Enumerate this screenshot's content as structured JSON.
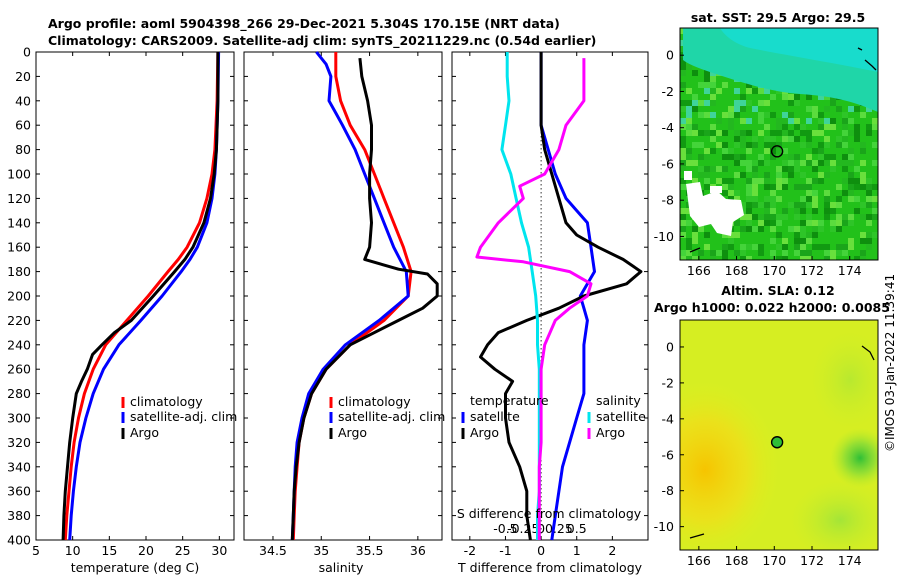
{
  "header": {
    "line1": "Argo profile: aoml 5904398_266 29-Dec-2021 5.304S 170.15E (NRT data)",
    "line2": "Climatology: CARS2009. Satellite-adj clim: synTS_20211229.nc (0.54d earlier)"
  },
  "colors": {
    "climatology": "#ff0000",
    "satellite": "#0000ff",
    "argo": "#000000",
    "t_diff": "#00e5ee",
    "s_diff": "#ff00ff"
  },
  "copyright": "©IMOS 03-Jan-2022 11:39:41",
  "chart_data": [
    {
      "type": "line",
      "id": "temperature",
      "xlabel": "temperature (deg C)",
      "ylabel": "",
      "xlim": [
        5,
        32
      ],
      "ylim": [
        400,
        0
      ],
      "xticks": [
        5,
        10,
        15,
        20,
        25,
        30
      ],
      "yticks": [
        0,
        20,
        40,
        60,
        80,
        100,
        120,
        140,
        160,
        180,
        200,
        220,
        240,
        260,
        280,
        300,
        320,
        340,
        360,
        380,
        400
      ],
      "legend": [
        "climatology",
        "satellite-adj. clim",
        "Argo"
      ],
      "legend_position": "bottom-right",
      "series": [
        {
          "name": "climatology",
          "color": "#ff0000",
          "depth": [
            0,
            40,
            80,
            100,
            120,
            140,
            160,
            170,
            180,
            200,
            220,
            240,
            260,
            280,
            300,
            320,
            340,
            360,
            380,
            400
          ],
          "values": [
            29.8,
            29.7,
            29.4,
            29.0,
            28.3,
            27.3,
            25.6,
            24.4,
            23.0,
            20.3,
            17.4,
            14.5,
            12.8,
            11.6,
            10.8,
            10.2,
            9.8,
            9.5,
            9.2,
            9.0
          ]
        },
        {
          "name": "satellite-adj. clim",
          "color": "#0000ff",
          "depth": [
            0,
            40,
            80,
            100,
            120,
            140,
            160,
            170,
            180,
            200,
            220,
            240,
            260,
            280,
            300,
            320,
            340,
            360,
            380,
            400
          ],
          "values": [
            29.9,
            29.8,
            29.6,
            29.4,
            29.0,
            28.3,
            27.0,
            26.0,
            24.8,
            22.2,
            19.3,
            16.3,
            14.2,
            12.8,
            11.8,
            11.0,
            10.5,
            10.1,
            9.8,
            9.6
          ]
        },
        {
          "name": "Argo",
          "color": "#000000",
          "depth": [
            0,
            40,
            80,
            100,
            120,
            140,
            160,
            170,
            180,
            200,
            220,
            230,
            240,
            248,
            260,
            270,
            280,
            300,
            320,
            340,
            360,
            380,
            400
          ],
          "values": [
            29.8,
            29.8,
            29.6,
            29.3,
            28.8,
            27.9,
            26.4,
            25.3,
            23.9,
            21.0,
            18.0,
            15.7,
            14.0,
            12.7,
            12.0,
            11.2,
            10.5,
            10.0,
            9.6,
            9.3,
            9.0,
            8.8,
            8.7
          ]
        }
      ]
    },
    {
      "type": "line",
      "id": "salinity",
      "xlabel": "salinity",
      "xlim": [
        34.2,
        36.25
      ],
      "ylim": [
        400,
        0
      ],
      "xticks": [
        34.5,
        35,
        35.5,
        36
      ],
      "legend": [
        "climatology",
        "satellite-adj. clim",
        "Argo"
      ],
      "legend_position": "bottom-right",
      "series": [
        {
          "name": "climatology",
          "color": "#ff0000",
          "depth": [
            0,
            20,
            40,
            60,
            80,
            100,
            120,
            140,
            160,
            180,
            200,
            220,
            240,
            260,
            280,
            300,
            320,
            340,
            360,
            380,
            400
          ],
          "values": [
            35.15,
            35.15,
            35.2,
            35.3,
            35.45,
            35.55,
            35.65,
            35.75,
            35.85,
            35.93,
            35.9,
            35.65,
            35.3,
            35.05,
            34.9,
            34.82,
            34.77,
            34.75,
            34.73,
            34.72,
            34.71
          ]
        },
        {
          "name": "satellite-adj. clim",
          "color": "#0000ff",
          "depth": [
            0,
            10,
            20,
            40,
            50,
            60,
            80,
            100,
            120,
            140,
            160,
            180,
            200,
            220,
            240,
            260,
            280,
            300,
            320,
            340,
            360,
            380,
            400
          ],
          "values": [
            34.95,
            35.05,
            35.1,
            35.08,
            35.15,
            35.22,
            35.35,
            35.45,
            35.55,
            35.65,
            35.75,
            35.88,
            35.9,
            35.6,
            35.25,
            35.02,
            34.87,
            34.8,
            34.75,
            34.73,
            34.72,
            34.71,
            34.7
          ]
        },
        {
          "name": "Argo",
          "color": "#000000",
          "depth": [
            5,
            20,
            40,
            60,
            80,
            100,
            120,
            140,
            160,
            170,
            178,
            182,
            190,
            200,
            210,
            220,
            240,
            260,
            280,
            300,
            320,
            340,
            360,
            380,
            400
          ],
          "values": [
            35.4,
            35.42,
            35.48,
            35.52,
            35.52,
            35.5,
            35.5,
            35.52,
            35.5,
            35.45,
            35.8,
            36.1,
            36.2,
            36.2,
            36.05,
            35.8,
            35.3,
            35.05,
            34.9,
            34.82,
            34.77,
            34.74,
            34.72,
            34.71,
            34.7
          ]
        }
      ]
    },
    {
      "type": "line",
      "id": "difference",
      "xlabel": "T difference from climatology",
      "xlabel2": "S difference from climatology",
      "xlim": [
        -2.5,
        3.0
      ],
      "ylim": [
        400,
        0
      ],
      "xticks": [
        -2,
        -1,
        0,
        1,
        2
      ],
      "xticks2_values": [
        -0.5,
        -0.25,
        0,
        0.25,
        0.5
      ],
      "xticks2": [
        "-0.5",
        "-0.25",
        "0",
        "0.25",
        "0.5"
      ],
      "legend_temperature": {
        "title": "temperature",
        "items": [
          "satellite",
          "Argo"
        ]
      },
      "legend_salinity": {
        "title": "salinity",
        "items": [
          "satellite",
          "Argo"
        ]
      },
      "series": [
        {
          "name": "T satellite",
          "color": "#0000ff",
          "depth": [
            0,
            60,
            80,
            100,
            120,
            130,
            140,
            160,
            180,
            200,
            210,
            220,
            240,
            260,
            280,
            300,
            320,
            340,
            360,
            380,
            400
          ],
          "values": [
            0,
            0,
            0.2,
            0.4,
            0.7,
            1.0,
            1.3,
            1.4,
            1.5,
            1.1,
            1.2,
            1.3,
            1.2,
            1.2,
            1.2,
            1.0,
            0.8,
            0.6,
            0.5,
            0.4,
            0.3
          ]
        },
        {
          "name": "T Argo",
          "color": "#000000",
          "depth": [
            0,
            60,
            80,
            100,
            120,
            140,
            150,
            160,
            170,
            180,
            190,
            200,
            210,
            220,
            230,
            240,
            250,
            260,
            270,
            280,
            300,
            320,
            340,
            360,
            380,
            400
          ],
          "values": [
            0,
            0,
            0.1,
            0.3,
            0.5,
            0.7,
            1.0,
            1.6,
            2.3,
            2.8,
            2.4,
            1.2,
            0.5,
            -0.4,
            -1.2,
            -1.5,
            -1.7,
            -1.3,
            -0.8,
            -1.0,
            -1.0,
            -0.9,
            -0.6,
            -0.4,
            -0.4,
            -0.3
          ]
        },
        {
          "name": "S satellite",
          "color": "#00e5ee",
          "depth": [
            0,
            20,
            40,
            60,
            80,
            100,
            120,
            140,
            160,
            180,
            200,
            220,
            240,
            260,
            280,
            300,
            320,
            340,
            360,
            380,
            400
          ],
          "values": [
            -0.95,
            -0.95,
            -0.9,
            -1.0,
            -1.1,
            -0.85,
            -0.7,
            -0.55,
            -0.35,
            -0.25,
            -0.15,
            -0.1,
            -0.1,
            -0.05,
            -0.05,
            -0.05,
            -0.05,
            -0.05,
            -0.05,
            -0.1,
            -0.1
          ]
        },
        {
          "name": "S Argo",
          "color": "#ff00ff",
          "depth": [
            5,
            20,
            40,
            60,
            80,
            100,
            110,
            120,
            140,
            160,
            168,
            172,
            180,
            190,
            200,
            210,
            220,
            240,
            260,
            280,
            300,
            320,
            340,
            360,
            380,
            400
          ],
          "values": [
            1.2,
            1.2,
            1.2,
            0.7,
            0.5,
            0.1,
            -0.6,
            -0.5,
            -1.2,
            -1.7,
            -1.8,
            -0.5,
            0.8,
            1.4,
            1.3,
            0.8,
            0.4,
            0.1,
            0.0,
            0.0,
            0.0,
            0.0,
            -0.05,
            -0.05,
            -0.05,
            -0.05
          ]
        }
      ]
    },
    {
      "type": "heatmap",
      "id": "sst_map",
      "title": "sat. SST: 29.5 Argo: 29.5",
      "xlim": [
        165,
        175.5
      ],
      "ylim": [
        -11.3,
        1.5
      ],
      "xticks": [
        166,
        168,
        170,
        172,
        174
      ],
      "yticks": [
        0,
        -2,
        -4,
        -6,
        -8,
        -10
      ],
      "argo_position": {
        "lon": 170.15,
        "lat": -5.304
      }
    },
    {
      "type": "heatmap",
      "id": "sla_map",
      "title": "Altim. SLA: 0.12",
      "subtitle": "Argo h1000: 0.022 h2000: 0.0085",
      "xlim": [
        165,
        175.5
      ],
      "ylim": [
        -11.3,
        1.5
      ],
      "xticks": [
        166,
        168,
        170,
        172,
        174
      ],
      "yticks": [
        0,
        -2,
        -4,
        -6,
        -8,
        -10
      ],
      "argo_position": {
        "lon": 170.15,
        "lat": -5.304
      }
    }
  ]
}
